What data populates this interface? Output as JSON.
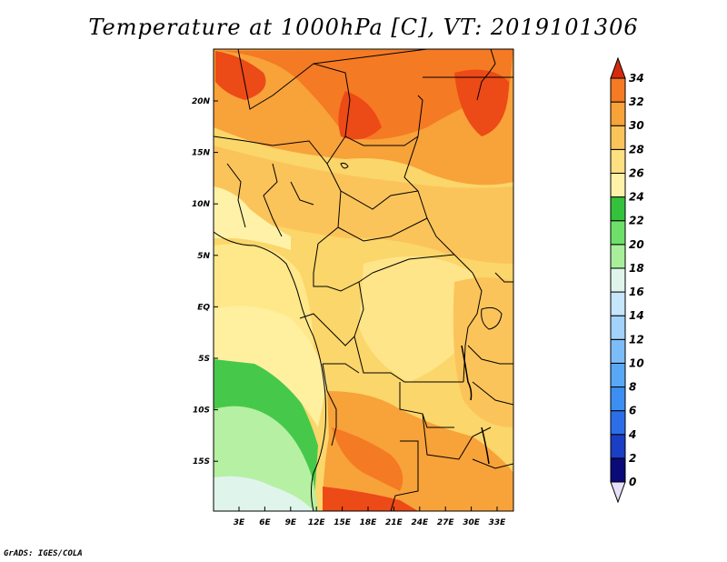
{
  "title": "Temperature at 1000hPa [C], VT: 2019101306",
  "credit": "GrADS: IGES/COLA",
  "map": {
    "lon_labels": [
      "3E",
      "6E",
      "9E",
      "12E",
      "15E",
      "18E",
      "21E",
      "24E",
      "27E",
      "30E",
      "33E"
    ],
    "lat_labels": [
      "20N",
      "15N",
      "10N",
      "5N",
      "EQ",
      "5S",
      "10S",
      "15S"
    ],
    "land_color": "#ffe88a"
  },
  "colorbar": {
    "labels": [
      "0",
      "2",
      "4",
      "6",
      "8",
      "10",
      "12",
      "14",
      "16",
      "18",
      "20",
      "22",
      "24",
      "26",
      "28",
      "30",
      "32",
      "34"
    ],
    "colors": [
      "#0a0a78",
      "#1a3fc4",
      "#2c6ee8",
      "#3c8ff0",
      "#5aa8f5",
      "#7dbdf7",
      "#a3d3fa",
      "#c5e6fb",
      "#dff5ec",
      "#a8ef9c",
      "#6ee06a",
      "#34c23c",
      "#fff2a8",
      "#fde082",
      "#fbc45a",
      "#f8a23a",
      "#f47a24",
      "#ec4a16",
      "#d62a10"
    ],
    "top_color": "#d62a10",
    "bottom_color": "#e6e0f8"
  }
}
